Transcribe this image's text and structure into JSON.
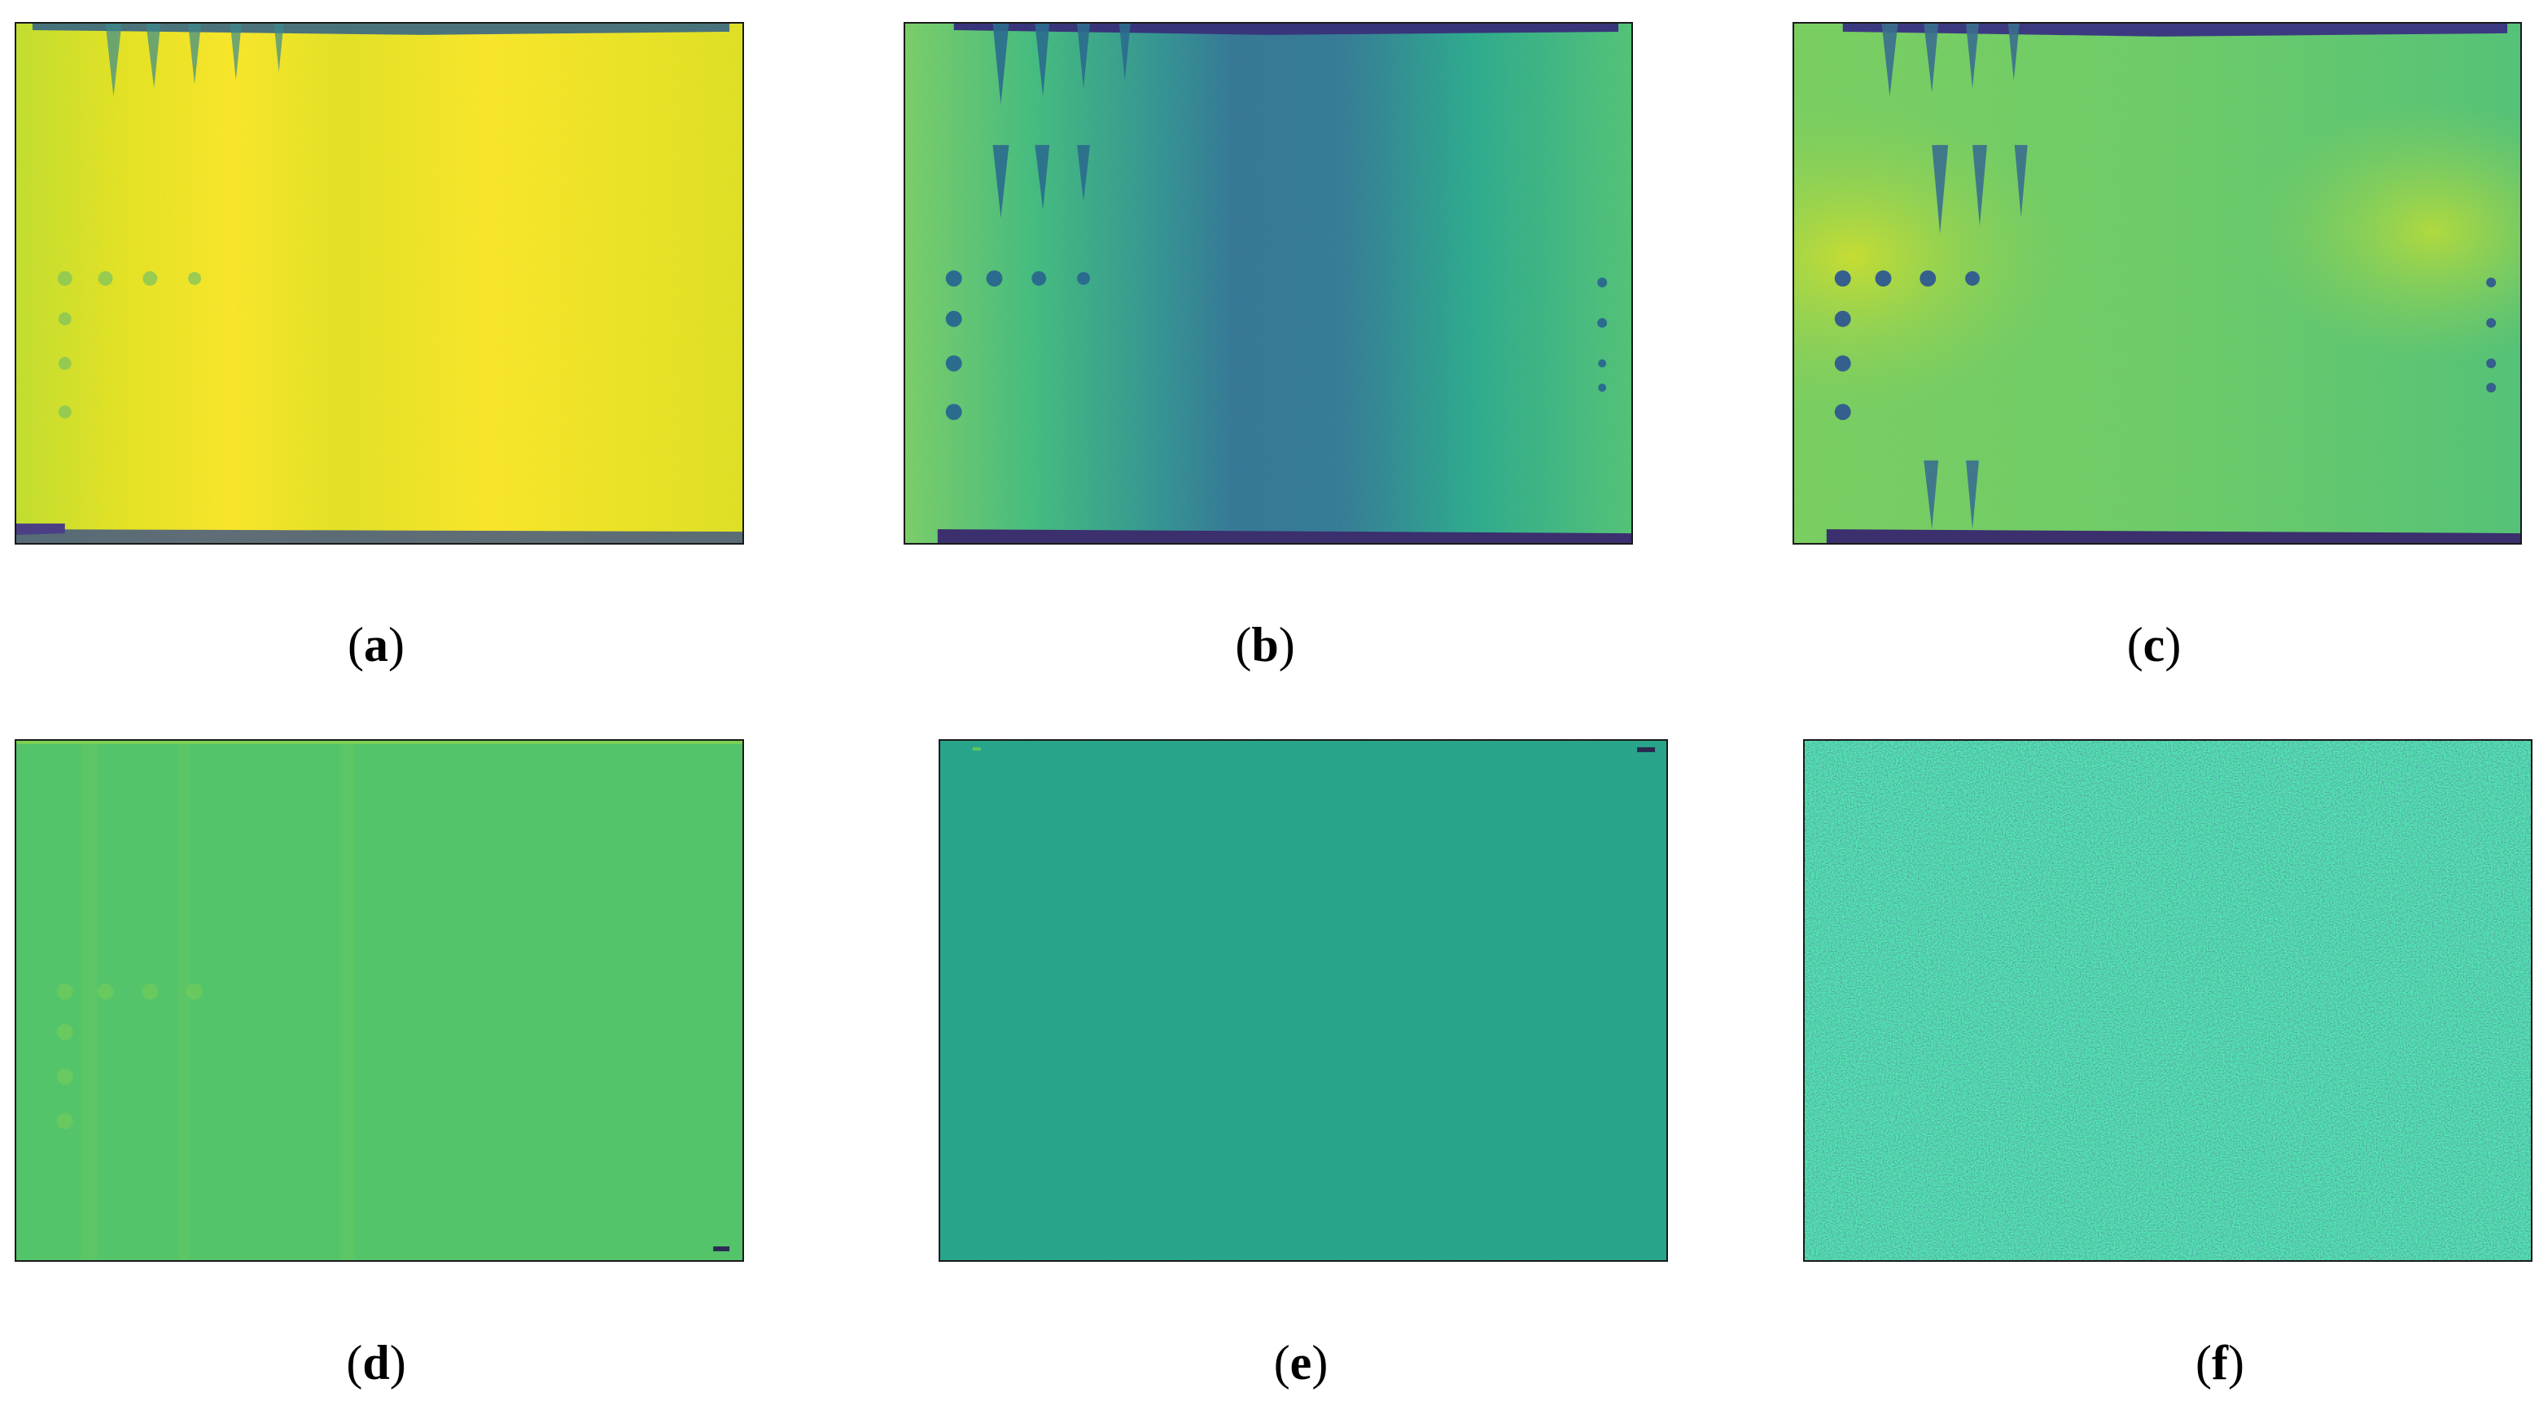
{
  "figure": {
    "panels": [
      {
        "id": "a",
        "label": "a",
        "colormap": "viridis",
        "dominant_color": "#f2e41e"
      },
      {
        "id": "b",
        "label": "b",
        "colormap": "viridis",
        "dominant_color": "#37a584"
      },
      {
        "id": "c",
        "label": "c",
        "colormap": "viridis",
        "dominant_color": "#7ecb4d"
      },
      {
        "id": "d",
        "label": "d",
        "colormap": "viridis",
        "dominant_color": "#53c46a"
      },
      {
        "id": "e",
        "label": "e",
        "colormap": "viridis",
        "dominant_color": "#22a386"
      },
      {
        "id": "f",
        "label": "f",
        "colormap": "viridis",
        "dominant_color": "#3b7f8e"
      }
    ]
  }
}
